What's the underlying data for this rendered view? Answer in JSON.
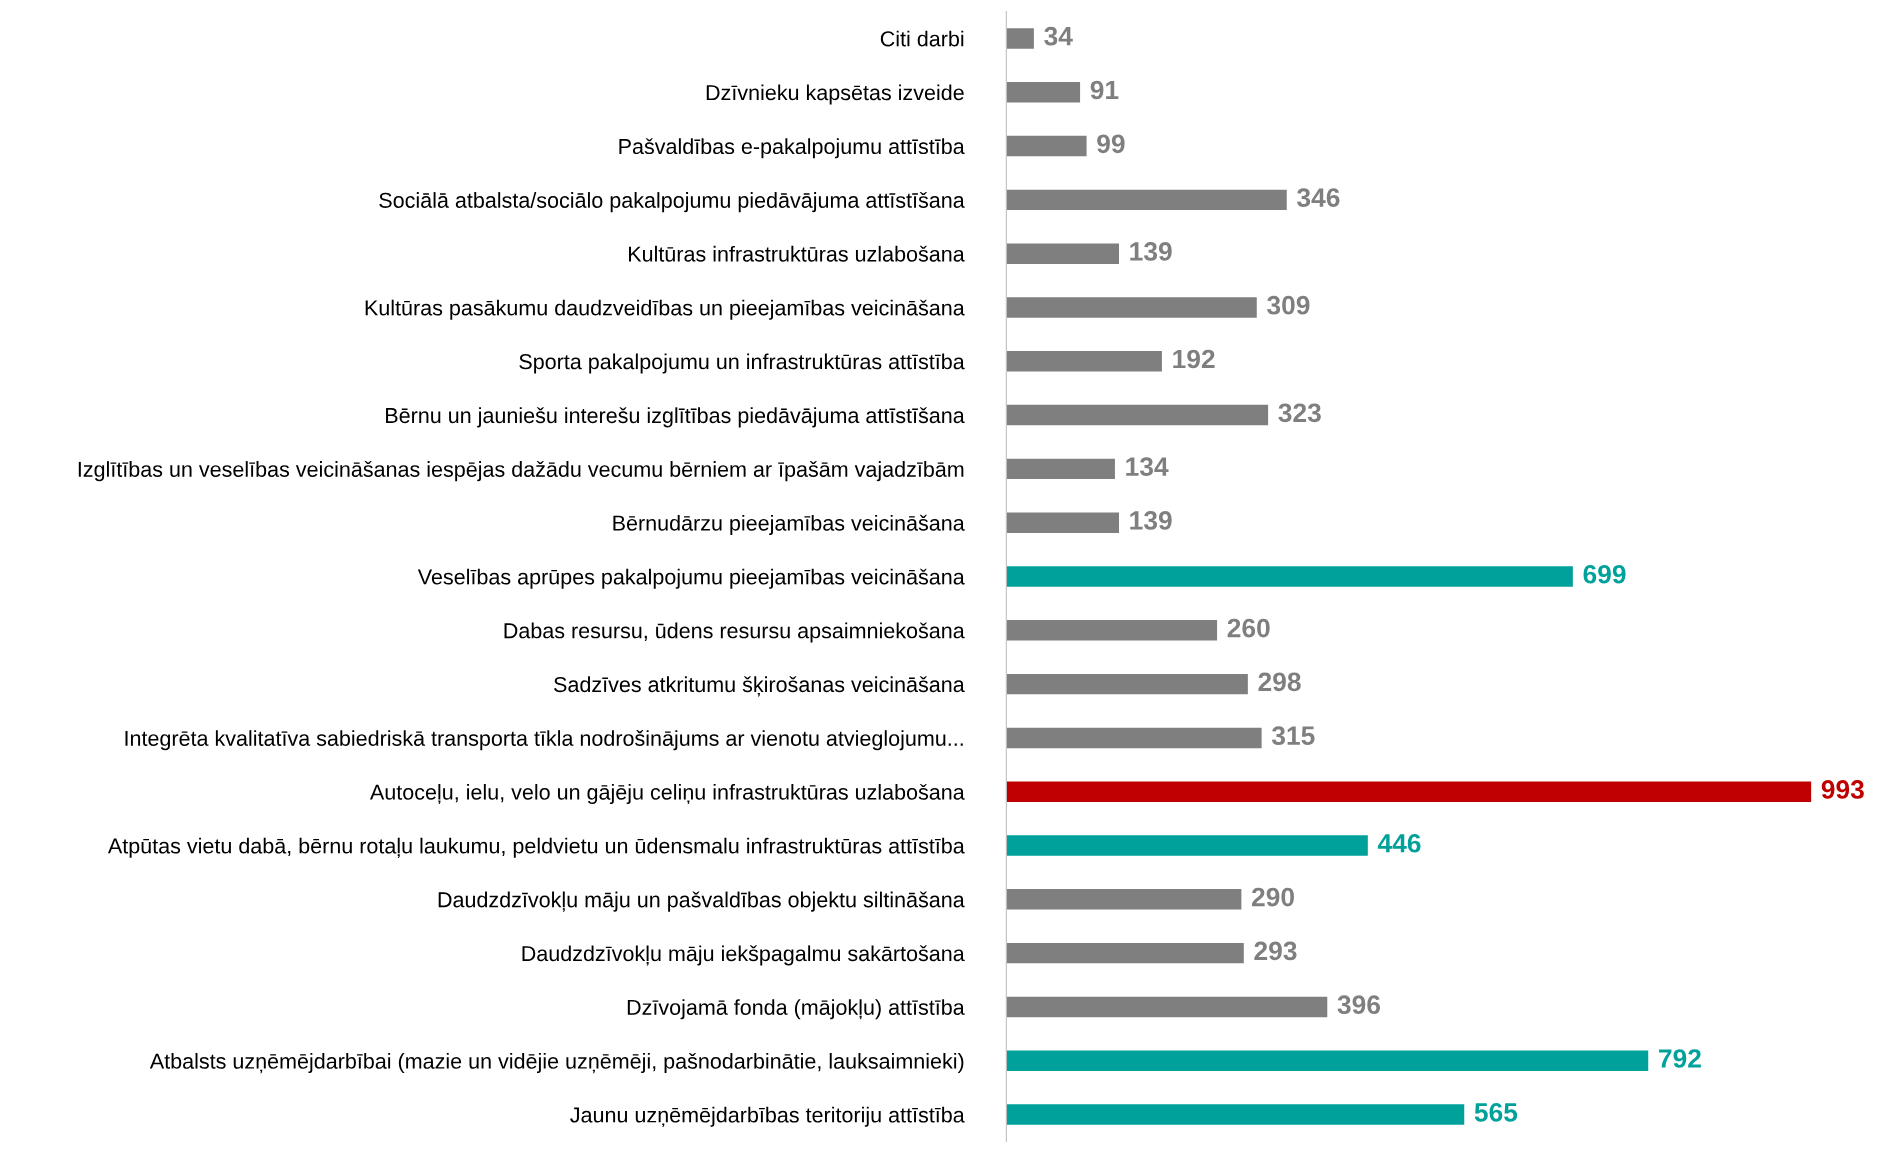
{
  "chart_data": {
    "type": "bar",
    "orientation": "horizontal",
    "data_labels": true,
    "grid": false,
    "legend": false,
    "categories": [
      "Citi darbi",
      "Dzīvnieku kapsētas izveide",
      "Pašvaldības e-pakalpojumu attīstība",
      "Sociālā atbalsta/sociālo pakalpojumu piedāvājuma attīstīšana",
      "Kultūras infrastruktūras uzlabošana",
      "Kultūras pasākumu daudzveidības un pieejamības veicināšana",
      "Sporta pakalpojumu un infrastruktūras attīstība",
      "Bērnu un jauniešu interešu izglītības piedāvājuma attīstīšana",
      "Izglītības un veselības veicināšanas iespējas dažādu vecumu bērniem ar īpašām vajadzībām",
      "Bērnudārzu pieejamības veicināšana",
      "Veselības aprūpes pakalpojumu pieejamības veicināšana",
      "Dabas resursu, ūdens resursu apsaimniekošana",
      "Sadzīves atkritumu šķirošanas veicināšana",
      "Integrēta kvalitatīva sabiedriskā transporta tīkla nodrošinājums ar vienotu atvieglojumu...",
      "Autoceļu, ielu, velo un gājēju celiņu infrastruktūras uzlabošana",
      "Atpūtas vietu dabā, bērnu rotaļu laukumu, peldvietu un ūdensmalu infrastruktūras attīstība",
      "Daudzdzīvokļu māju un pašvaldības objektu siltināšana",
      "Daudzdzīvokļu māju iekšpagalmu sakārtošana",
      "Dzīvojamā fonda (mājokļu) attīstība",
      "Atbalsts uzņēmējdarbībai (mazie un vidējie uzņēmēji, pašnodarbinātie, lauksaimnieki)",
      "Jaunu uzņēmējdarbības teritoriju attīstība"
    ],
    "values": [
      34,
      91,
      99,
      346,
      139,
      309,
      192,
      323,
      134,
      139,
      699,
      260,
      298,
      315,
      993,
      446,
      290,
      293,
      396,
      792,
      565
    ],
    "colors": [
      "#7f7f7f",
      "#7f7f7f",
      "#7f7f7f",
      "#7f7f7f",
      "#7f7f7f",
      "#7f7f7f",
      "#7f7f7f",
      "#7f7f7f",
      "#7f7f7f",
      "#7f7f7f",
      "#00a19a",
      "#7f7f7f",
      "#7f7f7f",
      "#7f7f7f",
      "#c00000",
      "#00a19a",
      "#7f7f7f",
      "#7f7f7f",
      "#7f7f7f",
      "#00a19a",
      "#00a19a"
    ]
  }
}
